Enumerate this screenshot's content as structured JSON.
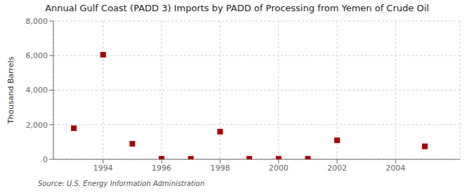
{
  "chart_data": {
    "type": "scatter",
    "title": "Annual Gulf Coast (PADD 3) Imports by PADD of Processing from Yemen of Crude Oil",
    "ylabel": "Thousand Barrels",
    "annotations": [
      "Source: U.S. Energy Information Administration"
    ],
    "x": [
      1993,
      1994,
      1995,
      1996,
      1997,
      1998,
      1999,
      2000,
      2001,
      2002,
      2005
    ],
    "values": [
      1800,
      6050,
      900,
      30,
      30,
      1600,
      30,
      30,
      30,
      1100,
      750
    ],
    "color": "#aa0000",
    "marker": "square",
    "xlim": [
      1992.3,
      2006.2
    ],
    "xticks": [
      1994,
      1996,
      1998,
      2000,
      2002,
      2004
    ],
    "ylim": [
      0,
      8000
    ],
    "yticks": [
      0,
      {
        "value": 2000,
        "label": "2,000"
      },
      {
        "value": 4000,
        "label": "4,000"
      },
      {
        "value": 6000,
        "label": "6,000"
      },
      {
        "value": 8000,
        "label": "8,000"
      }
    ],
    "grid": true
  }
}
